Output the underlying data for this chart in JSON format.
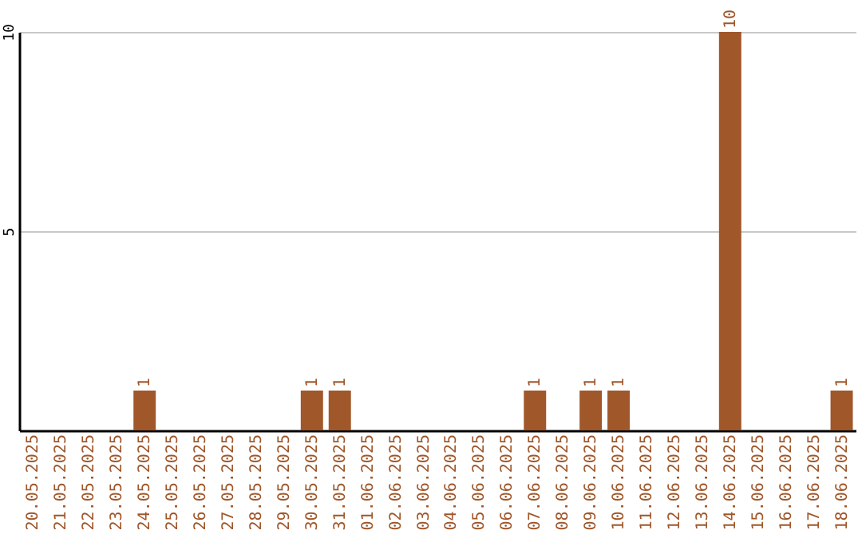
{
  "chart_data": {
    "type": "bar",
    "categories": [
      "20.05.2025",
      "21.05.2025",
      "22.05.2025",
      "23.05.2025",
      "24.05.2025",
      "25.05.2025",
      "26.05.2025",
      "27.05.2025",
      "28.05.2025",
      "29.05.2025",
      "30.05.2025",
      "31.05.2025",
      "01.06.2025",
      "02.06.2025",
      "03.06.2025",
      "04.06.2025",
      "05.06.2025",
      "06.06.2025",
      "07.06.2025",
      "08.06.2025",
      "09.06.2025",
      "10.06.2025",
      "11.06.2025",
      "12.06.2025",
      "13.06.2025",
      "14.06.2025",
      "15.06.2025",
      "16.06.2025",
      "17.06.2025",
      "18.06.2025"
    ],
    "values": [
      0,
      0,
      0,
      0,
      1,
      0,
      0,
      0,
      0,
      0,
      1,
      1,
      0,
      0,
      0,
      0,
      0,
      0,
      1,
      0,
      1,
      1,
      0,
      0,
      0,
      10,
      0,
      0,
      0,
      1
    ],
    "value_labels": [
      null,
      null,
      null,
      null,
      "1",
      null,
      null,
      null,
      null,
      null,
      "1",
      "1",
      null,
      null,
      null,
      null,
      null,
      null,
      "1",
      null,
      "1",
      "1",
      null,
      null,
      null,
      "10",
      null,
      null,
      null,
      "1"
    ],
    "color": "#a0572a",
    "ylim": [
      0,
      10
    ],
    "yticks": [
      5,
      10
    ],
    "grid": "y"
  }
}
